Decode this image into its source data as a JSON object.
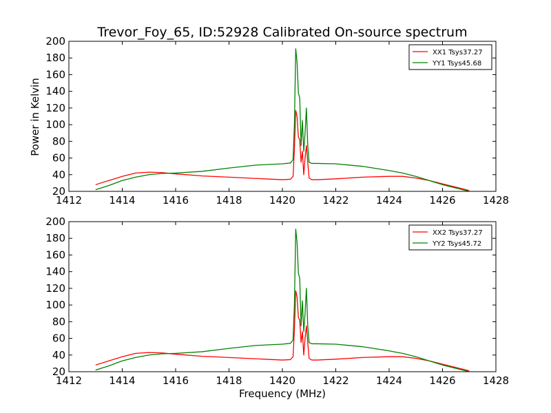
{
  "figure": {
    "title": "Trevor_Foy_65, ID:52928 Calibrated On-source spectrum",
    "ylabel": "Power in Kelvin",
    "xlabel": "Frequency (MHz)"
  },
  "chart_data": [
    {
      "type": "line",
      "title": "Trevor_Foy_65, ID:52928 Calibrated On-source spectrum",
      "ylabel": "Power in Kelvin",
      "xlabel": "",
      "xlim": [
        1412,
        1428
      ],
      "ylim": [
        20,
        200
      ],
      "xticks": [
        1412,
        1414,
        1416,
        1418,
        1420,
        1422,
        1424,
        1426,
        1428
      ],
      "yticks": [
        20,
        40,
        60,
        80,
        100,
        120,
        140,
        160,
        180,
        200
      ],
      "grid": false,
      "legend_position": "top-right",
      "series": [
        {
          "name": "XX1 Tsys37.27",
          "color": "#ff0000",
          "x": [
            1413.0,
            1413.5,
            1414.0,
            1414.5,
            1415.0,
            1415.5,
            1416.0,
            1417.0,
            1418.0,
            1419.0,
            1420.0,
            1420.3,
            1420.4,
            1420.45,
            1420.5,
            1420.55,
            1420.6,
            1420.65,
            1420.7,
            1420.75,
            1420.8,
            1420.85,
            1420.9,
            1420.95,
            1421.0,
            1421.1,
            1421.3,
            1422.0,
            1423.0,
            1424.0,
            1424.5,
            1425.0,
            1425.5,
            1426.0,
            1426.5,
            1427.0
          ],
          "y": [
            28,
            33,
            38,
            42,
            43,
            42.5,
            41,
            38.5,
            37,
            35.5,
            34,
            34.5,
            38,
            70,
            117,
            110,
            85,
            82,
            55,
            68,
            40,
            60,
            75,
            55,
            36,
            34,
            34,
            35,
            37,
            38,
            38,
            36,
            33,
            29,
            25,
            21
          ]
        },
        {
          "name": "YY1 Tsys45.68",
          "color": "#008000",
          "x": [
            1413.0,
            1413.5,
            1414.0,
            1414.5,
            1415.0,
            1415.5,
            1416.0,
            1417.0,
            1418.0,
            1419.0,
            1420.0,
            1420.3,
            1420.4,
            1420.45,
            1420.5,
            1420.55,
            1420.6,
            1420.65,
            1420.7,
            1420.75,
            1420.8,
            1420.85,
            1420.9,
            1420.95,
            1421.0,
            1421.1,
            1421.3,
            1422.0,
            1423.0,
            1424.0,
            1424.5,
            1425.0,
            1425.5,
            1426.0,
            1426.5,
            1427.0
          ],
          "y": [
            22,
            27,
            33,
            37,
            40,
            41.5,
            42,
            44,
            48,
            51.5,
            53,
            54,
            58,
            100,
            191,
            175,
            138,
            132,
            75,
            105,
            68,
            90,
            120,
            75,
            55,
            53.5,
            53.5,
            53,
            50,
            45,
            42,
            38,
            33,
            28,
            24,
            20
          ]
        }
      ]
    },
    {
      "type": "line",
      "title": "",
      "ylabel": "",
      "xlabel": "Frequency (MHz)",
      "xlim": [
        1412,
        1428
      ],
      "ylim": [
        20,
        200
      ],
      "xticks": [
        1412,
        1414,
        1416,
        1418,
        1420,
        1422,
        1424,
        1426,
        1428
      ],
      "yticks": [
        20,
        40,
        60,
        80,
        100,
        120,
        140,
        160,
        180,
        200
      ],
      "grid": false,
      "legend_position": "top-right",
      "series": [
        {
          "name": "XX2 Tsys37.27",
          "color": "#ff0000",
          "x": [
            1413.0,
            1413.5,
            1414.0,
            1414.5,
            1415.0,
            1415.5,
            1416.0,
            1417.0,
            1418.0,
            1419.0,
            1420.0,
            1420.3,
            1420.4,
            1420.45,
            1420.5,
            1420.55,
            1420.6,
            1420.65,
            1420.7,
            1420.75,
            1420.8,
            1420.85,
            1420.9,
            1420.95,
            1421.0,
            1421.1,
            1421.3,
            1422.0,
            1423.0,
            1424.0,
            1424.5,
            1425.0,
            1425.5,
            1426.0,
            1426.5,
            1427.0
          ],
          "y": [
            28,
            33,
            38,
            42,
            43,
            42.5,
            41,
            38.5,
            37,
            35.5,
            34,
            34.5,
            38,
            70,
            117,
            110,
            85,
            82,
            55,
            68,
            40,
            60,
            75,
            55,
            36,
            34,
            34,
            35,
            37,
            38,
            38,
            36,
            33,
            29,
            25,
            21
          ]
        },
        {
          "name": "YY2 Tsys45.72",
          "color": "#008000",
          "x": [
            1413.0,
            1413.5,
            1414.0,
            1414.5,
            1415.0,
            1415.5,
            1416.0,
            1417.0,
            1418.0,
            1419.0,
            1420.0,
            1420.3,
            1420.4,
            1420.45,
            1420.5,
            1420.55,
            1420.6,
            1420.65,
            1420.7,
            1420.75,
            1420.8,
            1420.85,
            1420.9,
            1420.95,
            1421.0,
            1421.1,
            1421.3,
            1422.0,
            1423.0,
            1424.0,
            1424.5,
            1425.0,
            1425.5,
            1426.0,
            1426.5,
            1427.0
          ],
          "y": [
            22,
            27,
            33,
            37,
            40,
            41.5,
            42,
            44,
            48,
            51.5,
            53,
            54,
            58,
            100,
            191,
            175,
            138,
            132,
            75,
            105,
            68,
            90,
            120,
            75,
            55,
            53.5,
            53.5,
            53,
            50,
            45,
            42,
            38,
            33,
            28,
            24,
            20
          ]
        }
      ]
    }
  ]
}
